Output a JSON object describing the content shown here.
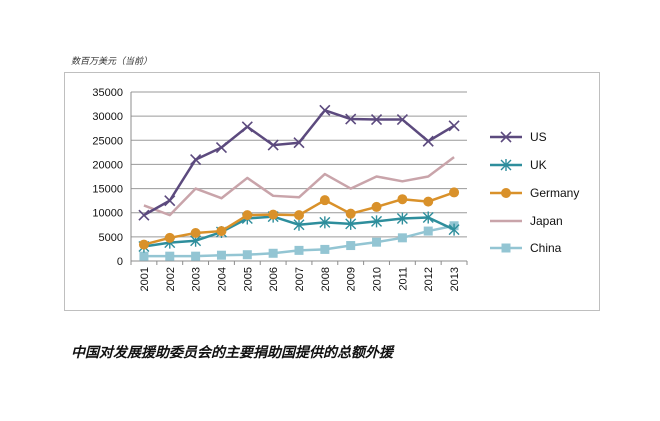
{
  "unit_label": "数百万美元（当前）",
  "caption": "中国对发展援助委员会的主要捐助国提供的总额外援",
  "colors": {
    "US": "#5c4a7e",
    "UK": "#2e8e9c",
    "Germany": "#d9912a",
    "Japan": "#c9a4aa",
    "China": "#93c5d3"
  },
  "chart_data": {
    "type": "line",
    "title": "",
    "xlabel": "",
    "ylabel": "数百万美元（当前）",
    "ylim": [
      0,
      35000
    ],
    "yticks": [
      0,
      5000,
      10000,
      15000,
      20000,
      25000,
      30000,
      35000
    ],
    "grid": "horizontal",
    "legend": "right",
    "categories": [
      "2001",
      "2002",
      "2003",
      "2004",
      "2005",
      "2006",
      "2007",
      "2008",
      "2009",
      "2010",
      "2011",
      "2012",
      "2013"
    ],
    "series": [
      {
        "name": "US",
        "marker": "x",
        "values": [
          9500,
          12500,
          21000,
          23500,
          27800,
          24000,
          24500,
          31200,
          29400,
          29300,
          29300,
          24800,
          28000
        ]
      },
      {
        "name": "UK",
        "marker": "asterisk",
        "values": [
          3000,
          3800,
          4200,
          6000,
          8800,
          9200,
          7500,
          8000,
          7700,
          8200,
          8800,
          9000,
          6500
        ]
      },
      {
        "name": "Germany",
        "marker": "circle",
        "values": [
          3400,
          4800,
          5800,
          6200,
          9500,
          9600,
          9500,
          12600,
          9800,
          11200,
          12800,
          12300,
          14200
        ]
      },
      {
        "name": "Japan",
        "marker": "none",
        "values": [
          11500,
          9500,
          15000,
          13000,
          17200,
          13500,
          13200,
          18000,
          15000,
          17500,
          16500,
          17500,
          21500
        ]
      },
      {
        "name": "China",
        "marker": "square",
        "values": [
          1000,
          1000,
          1000,
          1200,
          1300,
          1600,
          2200,
          2400,
          3200,
          3900,
          4800,
          6200,
          7300
        ]
      }
    ]
  }
}
